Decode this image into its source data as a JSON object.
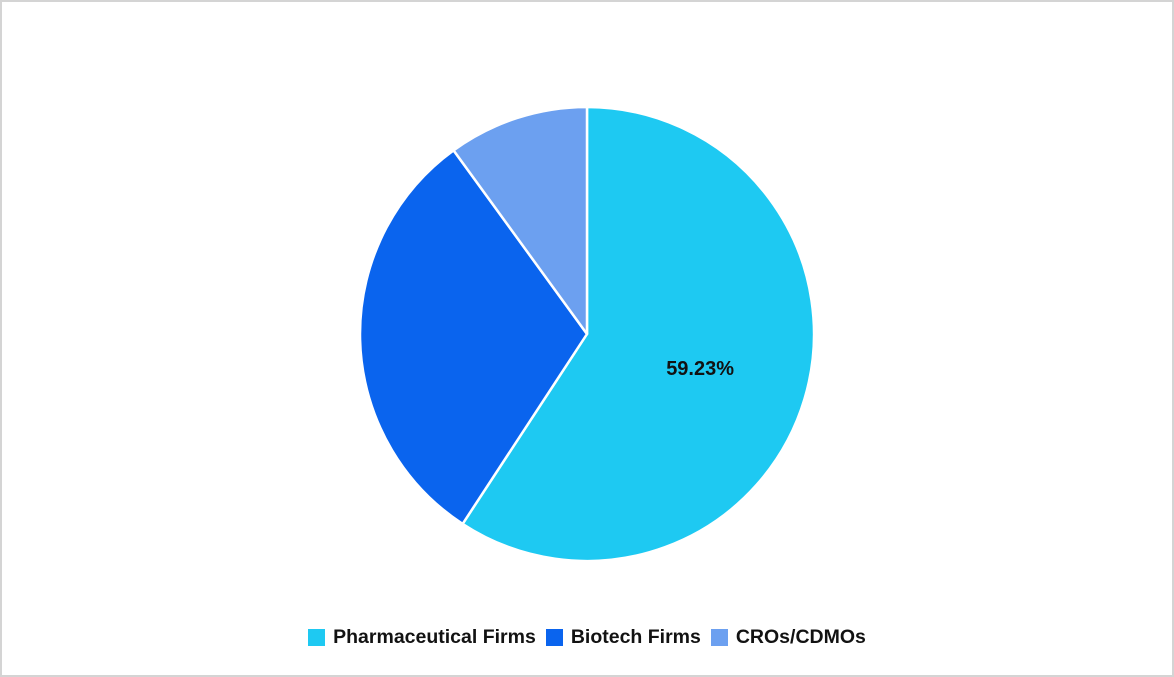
{
  "chart_data": {
    "type": "pie",
    "title": "",
    "legend_position": "bottom",
    "start_angle_deg": 0,
    "direction": "clockwise",
    "slice_border_color": "#ffffff",
    "text_color": "#121212",
    "slices": [
      {
        "id": "pharmaceutical-firms",
        "name": "Pharmaceutical Firms",
        "value": 59.23,
        "color": "#1ec9f2",
        "data_label": "59.23%"
      },
      {
        "id": "biotech-firms",
        "name": "Biotech Firms",
        "value": 30.77,
        "color": "#0a64ee",
        "data_label": ""
      },
      {
        "id": "cros-cdmos",
        "name": "CROs/CDMOs",
        "value": 10.0,
        "color": "#6ca0f0",
        "data_label": ""
      }
    ]
  }
}
